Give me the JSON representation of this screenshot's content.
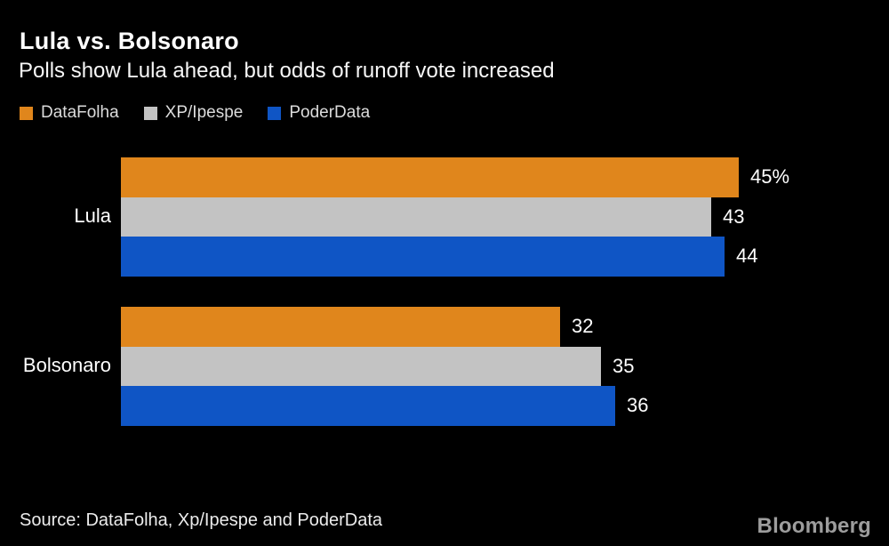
{
  "header": {
    "title": "Lula vs. Bolsonaro",
    "subtitle": "Polls show Lula ahead, but odds of runoff vote increased"
  },
  "legend": [
    {
      "label": "DataFolha",
      "color": "#E0861C"
    },
    {
      "label": "XP/Ipespe",
      "color": "#C3C3C3"
    },
    {
      "label": "PoderData",
      "color": "#0F55C5"
    }
  ],
  "chart_data": {
    "type": "bar",
    "orientation": "horizontal",
    "title": "Lula vs. Bolsonaro",
    "subtitle": "Polls show Lula ahead, but odds of runoff vote increased",
    "categories": [
      "Lula",
      "Bolsonaro"
    ],
    "series": [
      {
        "name": "DataFolha",
        "color": "#E0861C",
        "values": [
          45,
          32
        ]
      },
      {
        "name": "XP/Ipespe",
        "color": "#C3C3C3",
        "values": [
          43,
          35
        ]
      },
      {
        "name": "PoderData",
        "color": "#0F55C5",
        "values": [
          44,
          36
        ]
      }
    ],
    "value_labels": [
      [
        "45%",
        "43",
        "44"
      ],
      [
        "32",
        "35",
        "36"
      ]
    ],
    "xlim": [
      0,
      56
    ],
    "grid": "off",
    "legend_position": "top-left"
  },
  "footer": {
    "source": "Source: DataFolha, Xp/Ipespe and PoderData",
    "brand": "Bloomberg"
  }
}
